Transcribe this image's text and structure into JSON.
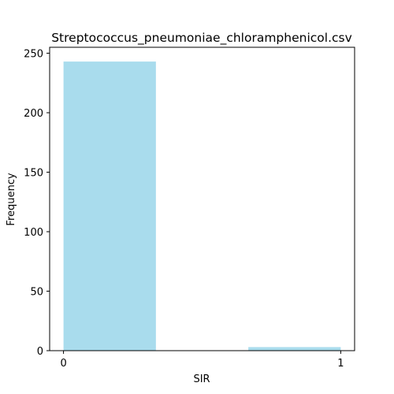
{
  "chart_data": {
    "type": "bar",
    "title": "Streptococcus_pneumoniae_chloramphenicol.csv",
    "xlabel": "SIR",
    "ylabel": "Frequency",
    "x_ticks": [
      "0",
      "1"
    ],
    "y_ticks": [
      "0",
      "50",
      "100",
      "150",
      "200",
      "250"
    ],
    "xlim": [
      -0.05,
      1.05
    ],
    "ylim": [
      0,
      255
    ],
    "bins": [
      {
        "start": 0.0,
        "end": 0.3333,
        "value": 243
      },
      {
        "start": 0.6667,
        "end": 1.0,
        "value": 3
      }
    ],
    "bar_color": "#a9dced",
    "grid": false,
    "legend": "none"
  }
}
